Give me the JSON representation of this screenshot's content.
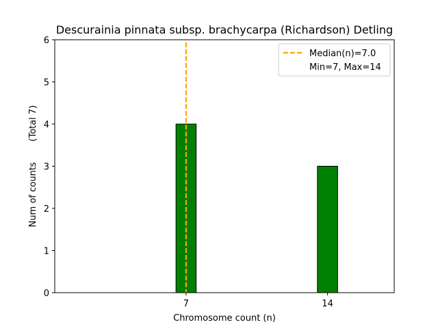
{
  "chart_data": {
    "type": "bar",
    "title": "Descurainia pinnata subsp. brachycarpa (Richardson) Detling",
    "xlabel": "Chromosome count (n)",
    "ylabel": "Num of counts",
    "ylabel_total": "(Total 7)",
    "categories": [
      7,
      14
    ],
    "values": [
      4,
      3
    ],
    "xlim": [
      0.5,
      17.3
    ],
    "ylim": [
      0,
      6
    ],
    "xticks": [
      "7",
      "14"
    ],
    "yticks": [
      "0",
      "1",
      "2",
      "3",
      "4",
      "5",
      "6"
    ],
    "bar_width": 1,
    "median_line": {
      "x": 7,
      "label": "Median(n)=7.0"
    },
    "minmax_text": "Min=7, Max=14",
    "legend_position": "top-right",
    "grid": false,
    "colors": {
      "bar": "#008000",
      "bar_edge": "#000000",
      "median": "#FFA500"
    }
  }
}
